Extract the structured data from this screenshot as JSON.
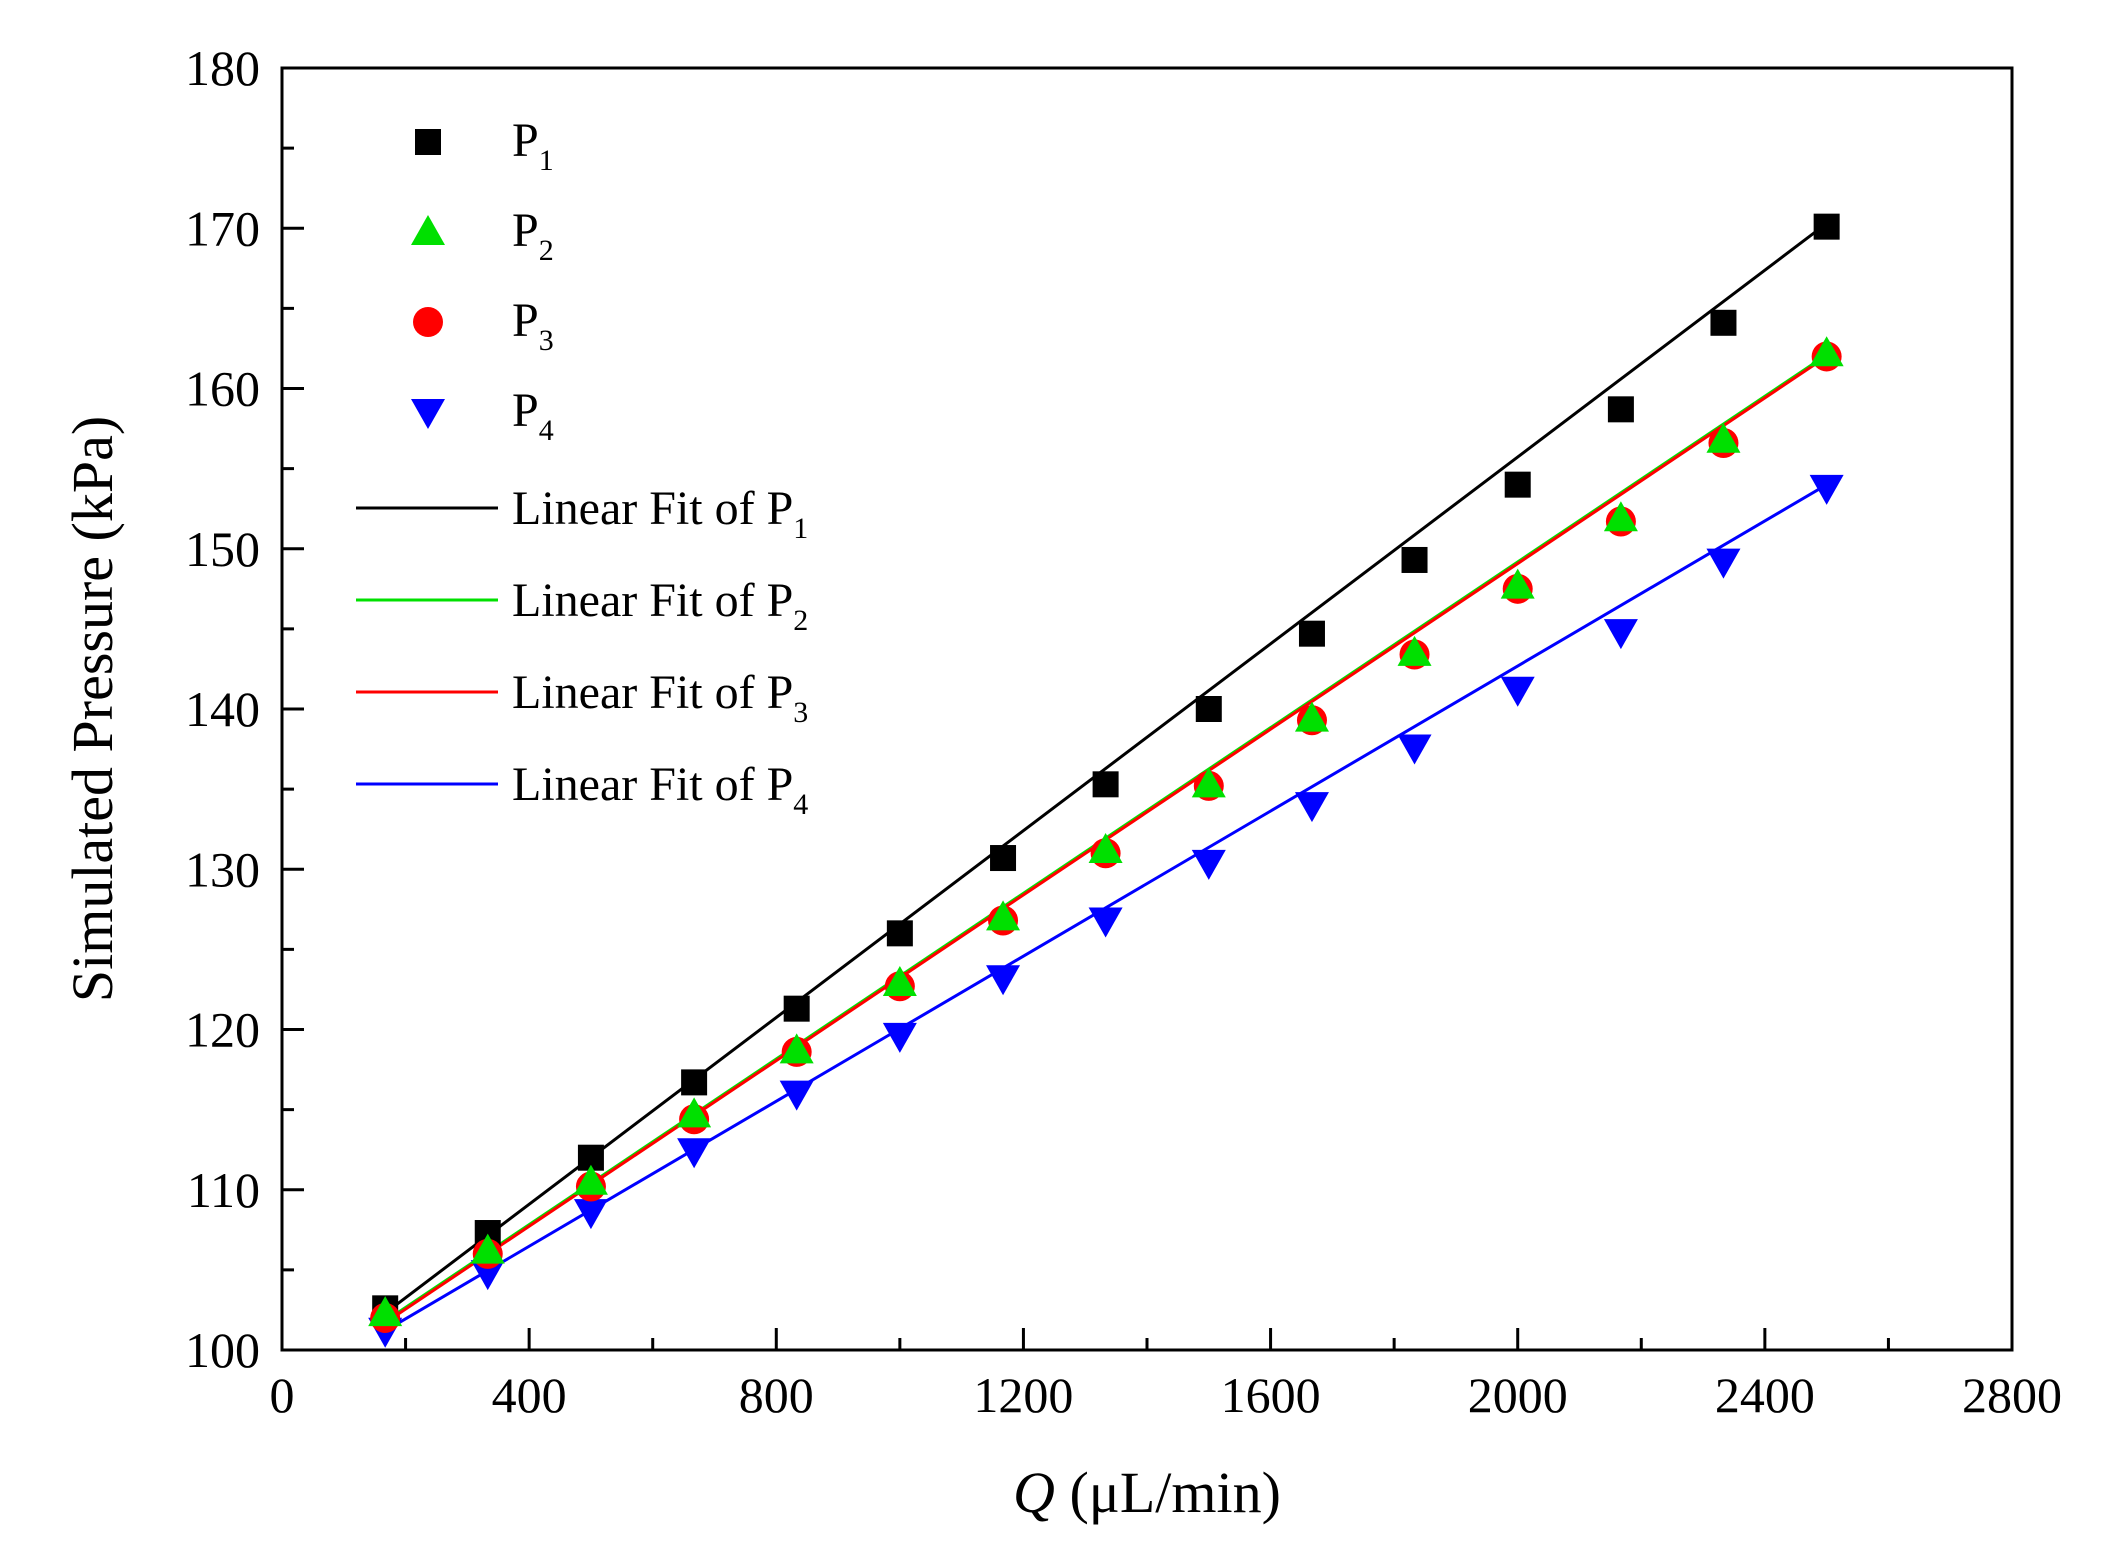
{
  "chart_data": {
    "type": "scatter",
    "title": "",
    "xlabel_italic": "Q",
    "xlabel_rest": " (μL/min)",
    "ylabel": "Simulated Pressure (kPa)",
    "xlim": [
      0,
      2800
    ],
    "ylim": [
      100,
      180
    ],
    "xticks": [
      0,
      400,
      800,
      1200,
      1600,
      2000,
      2400,
      2800
    ],
    "yticks": [
      100,
      110,
      120,
      130,
      140,
      150,
      160,
      170,
      180
    ],
    "grid": false,
    "legend_position": "top-left",
    "x": [
      167,
      333,
      500,
      667,
      833,
      1000,
      1167,
      1333,
      1500,
      1667,
      1833,
      2000,
      2167,
      2333,
      2500
    ],
    "series": [
      {
        "name": "P",
        "sub": "1",
        "marker": "square",
        "color": "#000000",
        "values": [
          102.6,
          107.3,
          112.0,
          116.7,
          121.3,
          126.0,
          130.7,
          135.3,
          140.0,
          144.7,
          149.3,
          154.0,
          158.7,
          164.1,
          170.1
        ]
      },
      {
        "name": "P",
        "sub": "2",
        "marker": "triangle-up",
        "color": "#00e000",
        "values": [
          102.3,
          106.2,
          110.5,
          114.7,
          118.7,
          122.9,
          127.0,
          131.2,
          135.3,
          139.4,
          143.5,
          147.7,
          151.9,
          156.8,
          162.2
        ]
      },
      {
        "name": "P",
        "sub": "3",
        "marker": "circle",
        "color": "#ff0000",
        "values": [
          102.0,
          106.0,
          110.2,
          114.4,
          118.6,
          122.7,
          126.8,
          131.0,
          135.2,
          139.3,
          143.4,
          147.5,
          151.7,
          156.6,
          162.0
        ]
      },
      {
        "name": "P",
        "sub": "4",
        "marker": "triangle-down",
        "color": "#0000ff",
        "values": [
          101.2,
          104.8,
          108.6,
          112.4,
          116.0,
          119.6,
          123.2,
          126.8,
          130.4,
          134.0,
          137.6,
          141.2,
          144.8,
          149.2,
          153.8
        ]
      }
    ],
    "fits": [
      {
        "name": "Linear Fit of P",
        "sub": "1",
        "color": "#000000",
        "x": [
          167,
          2500
        ],
        "y": [
          102.3,
          170.3
        ]
      },
      {
        "name": "Linear Fit of P",
        "sub": "2",
        "color": "#00e000",
        "x": [
          167,
          2500
        ],
        "y": [
          101.8,
          162.1
        ]
      },
      {
        "name": "Linear Fit of P",
        "sub": "3",
        "color": "#ff0000",
        "x": [
          167,
          2500
        ],
        "y": [
          101.7,
          162.0
        ]
      },
      {
        "name": "Linear Fit of P",
        "sub": "4",
        "color": "#0000ff",
        "x": [
          167,
          2500
        ],
        "y": [
          101.2,
          154.0
        ]
      }
    ]
  }
}
